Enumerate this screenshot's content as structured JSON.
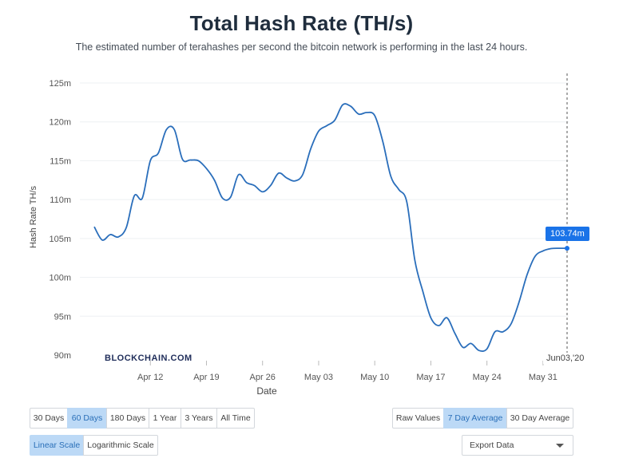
{
  "header": {
    "title": "Total Hash Rate (TH/s)",
    "subtitle": "The estimated number of terahashes per second the bitcoin network is performing in the last 24 hours."
  },
  "watermark": "BLOCKCHAIN.COM",
  "crosshair": {
    "value_label": "103.74m",
    "date_label": "Jun03,'20"
  },
  "colors": {
    "line": "#2a6ebb",
    "accent": "#1a73e8",
    "active_button": "#bcd9f6",
    "grid": "#eef0f3"
  },
  "controls": {
    "range_buttons": [
      {
        "label": "30 Days",
        "active": false
      },
      {
        "label": "60 Days",
        "active": true
      },
      {
        "label": "180 Days",
        "active": false
      },
      {
        "label": "1 Year",
        "active": false
      },
      {
        "label": "3 Years",
        "active": false
      },
      {
        "label": "All Time",
        "active": false
      }
    ],
    "value_buttons": [
      {
        "label": "Raw Values",
        "active": false
      },
      {
        "label": "7 Day Average",
        "active": true
      },
      {
        "label": "30 Day Average",
        "active": false
      }
    ],
    "scale_buttons": [
      {
        "label": "Linear Scale",
        "active": true
      },
      {
        "label": "Logarithmic Scale",
        "active": false
      }
    ],
    "export_label": "Export Data"
  },
  "chart_data": {
    "type": "line",
    "xlabel": "Date",
    "ylabel": "Hash Rate TH/s",
    "ylim": [
      90,
      125
    ],
    "y_ticks": [
      90,
      95,
      100,
      105,
      110,
      115,
      120,
      125
    ],
    "y_tick_labels": [
      "90m",
      "95m",
      "100m",
      "105m",
      "110m",
      "115m",
      "120m",
      "125m"
    ],
    "xlim": [
      "2020-04-05",
      "2020-06-03"
    ],
    "x_ticks": [
      "2020-04-12",
      "2020-04-19",
      "2020-04-26",
      "2020-05-03",
      "2020-05-10",
      "2020-05-17",
      "2020-05-24",
      "2020-05-31"
    ],
    "x_tick_labels": [
      "Apr 12",
      "Apr 19",
      "Apr 26",
      "May 03",
      "May 10",
      "May 17",
      "May 24",
      "May 31"
    ],
    "grid": true,
    "series": [
      {
        "x": [
          "2020-04-05",
          "2020-04-06",
          "2020-04-07",
          "2020-04-08",
          "2020-04-09",
          "2020-04-10",
          "2020-04-11",
          "2020-04-12",
          "2020-04-13",
          "2020-04-14",
          "2020-04-15",
          "2020-04-16",
          "2020-04-17",
          "2020-04-18",
          "2020-04-19",
          "2020-04-20",
          "2020-04-21",
          "2020-04-22",
          "2020-04-23",
          "2020-04-24",
          "2020-04-25",
          "2020-04-26",
          "2020-04-27",
          "2020-04-28",
          "2020-04-29",
          "2020-04-30",
          "2020-05-01",
          "2020-05-02",
          "2020-05-03",
          "2020-05-04",
          "2020-05-05",
          "2020-05-06",
          "2020-05-07",
          "2020-05-08",
          "2020-05-09",
          "2020-05-10",
          "2020-05-11",
          "2020-05-12",
          "2020-05-13",
          "2020-05-14",
          "2020-05-15",
          "2020-05-16",
          "2020-05-17",
          "2020-05-18",
          "2020-05-19",
          "2020-05-20",
          "2020-05-21",
          "2020-05-22",
          "2020-05-23",
          "2020-05-24",
          "2020-05-25",
          "2020-05-26",
          "2020-05-27",
          "2020-05-28",
          "2020-05-29",
          "2020-05-30",
          "2020-05-31",
          "2020-06-01",
          "2020-06-02",
          "2020-06-03"
        ],
        "values": [
          106.5,
          104.8,
          105.5,
          105.2,
          106.4,
          110.5,
          110.2,
          115.0,
          116.0,
          119.0,
          119.0,
          115.2,
          115.1,
          115.0,
          114.0,
          112.5,
          110.2,
          110.3,
          113.2,
          112.2,
          111.8,
          111.0,
          111.8,
          113.4,
          112.8,
          112.4,
          113.2,
          116.5,
          118.8,
          119.5,
          120.2,
          122.2,
          122.0,
          121.0,
          121.2,
          120.8,
          117.5,
          113.0,
          111.3,
          109.7,
          102.2,
          98.2,
          94.8,
          93.8,
          94.8,
          92.8,
          91.0,
          91.5,
          90.6,
          90.8,
          93.0,
          93.0,
          94.0,
          96.8,
          100.3,
          102.7,
          103.4,
          103.7,
          103.74,
          103.74
        ]
      }
    ]
  }
}
